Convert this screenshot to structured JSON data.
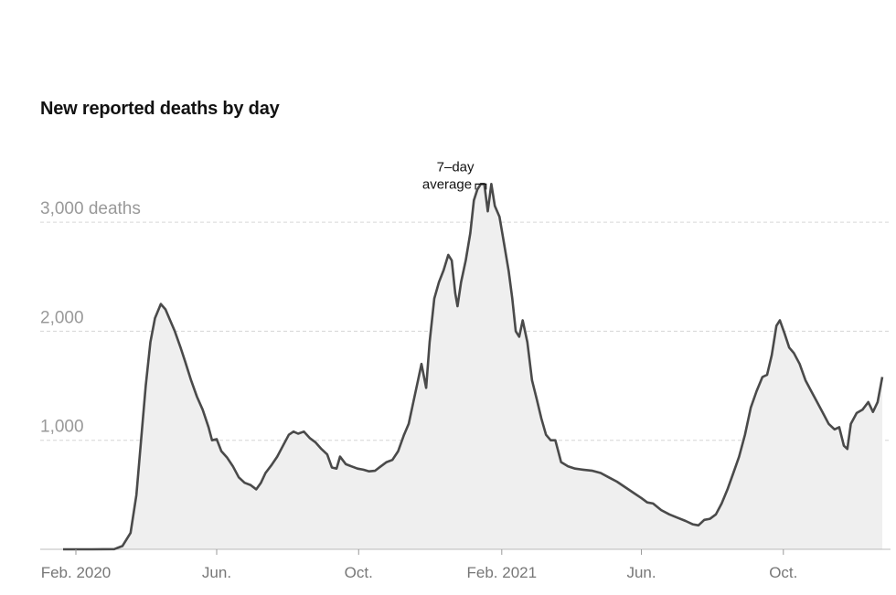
{
  "title": "New reported deaths by day",
  "chart_data": {
    "type": "area",
    "title": "New reported deaths by day",
    "xlabel": "",
    "ylabel": "",
    "series_label": "7-day average",
    "annotation": {
      "line1": "7–day",
      "line2": "average"
    },
    "ylim": [
      0,
      3400
    ],
    "xlim": [
      "2020-01-21",
      "2021-12-25"
    ],
    "yticks": [
      {
        "value": 1000,
        "label": "1,000"
      },
      {
        "value": 2000,
        "label": "2,000"
      },
      {
        "value": 3000,
        "label": "3,000 deaths"
      }
    ],
    "xticks": [
      {
        "date": "2020-02-01",
        "label": "Feb. 2020"
      },
      {
        "date": "2020-06-01",
        "label": "Jun."
      },
      {
        "date": "2020-10-01",
        "label": "Oct."
      },
      {
        "date": "2021-02-01",
        "label": "Feb. 2021"
      },
      {
        "date": "2021-06-01",
        "label": "Jun."
      },
      {
        "date": "2021-10-01",
        "label": "Oct."
      }
    ],
    "grid": true,
    "colors": {
      "line": "#4a4a4a",
      "fill": "#efefef",
      "grid": "#d6d6d6",
      "baseline": "#bbbbbb"
    },
    "points": [
      [
        "2020-01-21",
        0
      ],
      [
        "2020-02-15",
        0
      ],
      [
        "2020-03-05",
        2
      ],
      [
        "2020-03-12",
        30
      ],
      [
        "2020-03-19",
        150
      ],
      [
        "2020-03-24",
        500
      ],
      [
        "2020-03-28",
        1000
      ],
      [
        "2020-04-01",
        1500
      ],
      [
        "2020-04-05",
        1900
      ],
      [
        "2020-04-09",
        2120
      ],
      [
        "2020-04-14",
        2250
      ],
      [
        "2020-04-18",
        2200
      ],
      [
        "2020-04-22",
        2100
      ],
      [
        "2020-04-26",
        2000
      ],
      [
        "2020-05-01",
        1850
      ],
      [
        "2020-05-05",
        1720
      ],
      [
        "2020-05-10",
        1550
      ],
      [
        "2020-05-15",
        1400
      ],
      [
        "2020-05-20",
        1280
      ],
      [
        "2020-05-25",
        1120
      ],
      [
        "2020-05-28",
        1000
      ],
      [
        "2020-06-01",
        1010
      ],
      [
        "2020-06-05",
        900
      ],
      [
        "2020-06-10",
        840
      ],
      [
        "2020-06-15",
        760
      ],
      [
        "2020-06-20",
        660
      ],
      [
        "2020-06-25",
        610
      ],
      [
        "2020-06-30",
        590
      ],
      [
        "2020-07-05",
        550
      ],
      [
        "2020-07-09",
        610
      ],
      [
        "2020-07-13",
        700
      ],
      [
        "2020-07-18",
        770
      ],
      [
        "2020-07-23",
        850
      ],
      [
        "2020-07-28",
        950
      ],
      [
        "2020-08-02",
        1050
      ],
      [
        "2020-08-06",
        1080
      ],
      [
        "2020-08-10",
        1060
      ],
      [
        "2020-08-15",
        1080
      ],
      [
        "2020-08-20",
        1020
      ],
      [
        "2020-08-25",
        980
      ],
      [
        "2020-08-30",
        920
      ],
      [
        "2020-09-04",
        870
      ],
      [
        "2020-09-08",
        750
      ],
      [
        "2020-09-12",
        740
      ],
      [
        "2020-09-15",
        850
      ],
      [
        "2020-09-20",
        780
      ],
      [
        "2020-09-25",
        760
      ],
      [
        "2020-09-30",
        740
      ],
      [
        "2020-10-05",
        730
      ],
      [
        "2020-10-10",
        715
      ],
      [
        "2020-10-15",
        720
      ],
      [
        "2020-10-20",
        760
      ],
      [
        "2020-10-25",
        800
      ],
      [
        "2020-10-30",
        820
      ],
      [
        "2020-11-04",
        900
      ],
      [
        "2020-11-09",
        1050
      ],
      [
        "2020-11-13",
        1150
      ],
      [
        "2020-11-17",
        1350
      ],
      [
        "2020-11-21",
        1550
      ],
      [
        "2020-11-24",
        1700
      ],
      [
        "2020-11-28",
        1480
      ],
      [
        "2020-12-01",
        1900
      ],
      [
        "2020-12-05",
        2300
      ],
      [
        "2020-12-09",
        2450
      ],
      [
        "2020-12-13",
        2560
      ],
      [
        "2020-12-17",
        2700
      ],
      [
        "2020-12-20",
        2650
      ],
      [
        "2020-12-23",
        2350
      ],
      [
        "2020-12-25",
        2230
      ],
      [
        "2020-12-28",
        2450
      ],
      [
        "2021-01-01",
        2650
      ],
      [
        "2021-01-05",
        2900
      ],
      [
        "2021-01-08",
        3200
      ],
      [
        "2021-01-11",
        3300
      ],
      [
        "2021-01-14",
        3350
      ],
      [
        "2021-01-17",
        3350
      ],
      [
        "2021-01-20",
        3100
      ],
      [
        "2021-01-23",
        3350
      ],
      [
        "2021-01-26",
        3150
      ],
      [
        "2021-01-30",
        3050
      ],
      [
        "2021-02-03",
        2800
      ],
      [
        "2021-02-07",
        2550
      ],
      [
        "2021-02-10",
        2300
      ],
      [
        "2021-02-13",
        2000
      ],
      [
        "2021-02-16",
        1950
      ],
      [
        "2021-02-19",
        2100
      ],
      [
        "2021-02-23",
        1900
      ],
      [
        "2021-02-27",
        1550
      ],
      [
        "2021-03-03",
        1380
      ],
      [
        "2021-03-07",
        1200
      ],
      [
        "2021-03-11",
        1050
      ],
      [
        "2021-03-15",
        1000
      ],
      [
        "2021-03-19",
        1000
      ],
      [
        "2021-03-24",
        800
      ],
      [
        "2021-03-30",
        760
      ],
      [
        "2021-04-05",
        740
      ],
      [
        "2021-04-12",
        730
      ],
      [
        "2021-04-20",
        720
      ],
      [
        "2021-04-27",
        700
      ],
      [
        "2021-05-04",
        660
      ],
      [
        "2021-05-11",
        620
      ],
      [
        "2021-05-18",
        570
      ],
      [
        "2021-05-25",
        520
      ],
      [
        "2021-06-01",
        470
      ],
      [
        "2021-06-06",
        430
      ],
      [
        "2021-06-11",
        420
      ],
      [
        "2021-06-18",
        360
      ],
      [
        "2021-06-25",
        320
      ],
      [
        "2021-07-02",
        290
      ],
      [
        "2021-07-09",
        260
      ],
      [
        "2021-07-15",
        230
      ],
      [
        "2021-07-20",
        220
      ],
      [
        "2021-07-25",
        270
      ],
      [
        "2021-07-30",
        280
      ],
      [
        "2021-08-04",
        320
      ],
      [
        "2021-08-09",
        420
      ],
      [
        "2021-08-14",
        550
      ],
      [
        "2021-08-19",
        700
      ],
      [
        "2021-08-24",
        850
      ],
      [
        "2021-08-29",
        1050
      ],
      [
        "2021-09-03",
        1300
      ],
      [
        "2021-09-08",
        1450
      ],
      [
        "2021-09-13",
        1580
      ],
      [
        "2021-09-17",
        1600
      ],
      [
        "2021-09-21",
        1780
      ],
      [
        "2021-09-25",
        2050
      ],
      [
        "2021-09-28",
        2100
      ],
      [
        "2021-10-02",
        1980
      ],
      [
        "2021-10-06",
        1850
      ],
      [
        "2021-10-10",
        1800
      ],
      [
        "2021-10-15",
        1700
      ],
      [
        "2021-10-20",
        1550
      ],
      [
        "2021-10-25",
        1450
      ],
      [
        "2021-10-30",
        1350
      ],
      [
        "2021-11-04",
        1250
      ],
      [
        "2021-11-09",
        1150
      ],
      [
        "2021-11-14",
        1100
      ],
      [
        "2021-11-18",
        1120
      ],
      [
        "2021-11-22",
        950
      ],
      [
        "2021-11-25",
        920
      ],
      [
        "2021-11-28",
        1150
      ],
      [
        "2021-12-03",
        1250
      ],
      [
        "2021-12-08",
        1280
      ],
      [
        "2021-12-13",
        1350
      ],
      [
        "2021-12-17",
        1260
      ],
      [
        "2021-12-21",
        1350
      ],
      [
        "2021-12-25",
        1580
      ]
    ]
  }
}
